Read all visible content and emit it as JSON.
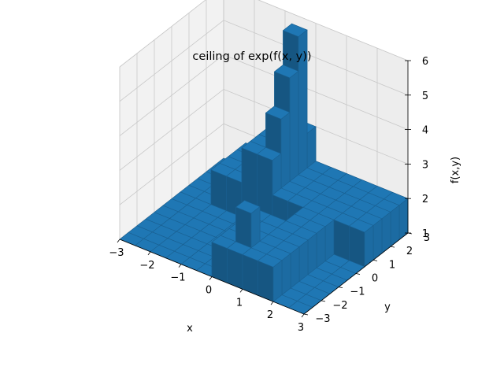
{
  "chart_data": {
    "type": "surface3d",
    "title": "ceiling of exp(f(x, y))",
    "xlabel": "x",
    "ylabel": "y",
    "zlabel": "f(x,y)",
    "x_ticks": [
      "−3",
      "−2",
      "−1",
      "0",
      "1",
      "2",
      "3"
    ],
    "y_ticks": [
      "−3",
      "−2",
      "−1",
      "0",
      "1",
      "2",
      "3"
    ],
    "z_ticks": [
      "1",
      "2",
      "3",
      "4",
      "5",
      "6"
    ],
    "xlim": [
      -3,
      3
    ],
    "ylim": [
      -3,
      3
    ],
    "zlim": [
      1,
      6
    ],
    "grid": true,
    "surface_color": "#1f77b4",
    "grid_x": [
      -3,
      -2.5,
      -2,
      -1.5,
      -1,
      -0.5,
      0,
      0.5,
      1,
      1.5,
      2,
      2.5,
      3
    ],
    "grid_y": [
      -3,
      -2.5,
      -2,
      -1.5,
      -1,
      -0.5,
      0,
      0.5,
      1,
      1.5,
      2,
      2.5,
      3
    ],
    "z": [
      [
        1,
        1,
        1,
        1,
        1,
        1,
        1,
        1,
        1,
        1,
        1,
        1,
        1
      ],
      [
        1,
        1,
        1,
        1,
        1,
        1,
        1,
        1,
        1,
        1,
        1,
        1,
        1
      ],
      [
        1,
        1,
        1,
        1,
        1,
        1,
        1,
        1,
        1,
        1,
        1,
        1,
        1
      ],
      [
        1,
        1,
        1,
        1,
        1,
        1,
        1,
        1,
        1,
        1,
        1,
        1,
        1
      ],
      [
        1,
        1,
        1,
        1,
        1,
        1,
        1,
        1,
        1,
        1,
        1,
        1,
        1
      ],
      [
        1,
        1,
        1,
        1,
        1,
        1,
        1,
        1,
        1,
        1,
        1,
        1,
        1
      ],
      [
        1,
        1,
        1,
        1,
        1,
        1,
        1,
        1,
        1,
        1,
        1,
        1,
        1
      ],
      [
        1,
        1,
        1,
        1,
        1,
        1,
        1,
        1,
        1,
        1,
        1,
        1,
        1
      ],
      [
        1,
        1,
        1,
        1,
        1,
        1,
        1,
        1,
        1,
        1,
        1,
        1,
        1
      ],
      [
        1,
        1,
        1,
        1,
        1,
        1,
        1,
        1,
        1,
        1,
        1,
        1,
        1
      ],
      [
        1,
        1,
        1,
        1,
        1,
        1,
        1,
        1,
        1,
        1,
        1,
        1,
        1
      ],
      [
        1,
        1,
        1,
        1,
        1,
        1,
        1,
        1,
        1,
        1,
        1,
        1,
        1
      ],
      [
        1,
        1,
        1,
        1,
        1,
        1,
        1,
        1,
        1,
        1,
        1,
        1,
        1
      ]
    ],
    "regions": [
      {
        "x": [
          -2,
          -1
        ],
        "y": [
          0.5,
          2.5
        ],
        "z": 2
      },
      {
        "x": [
          -1,
          0
        ],
        "y": [
          0.5,
          3
        ],
        "z": 3
      },
      {
        "x": [
          -0.5,
          0
        ],
        "y": [
          1,
          2.5
        ],
        "z": 4
      },
      {
        "x": [
          -0.5,
          0
        ],
        "y": [
          1.5,
          2
        ],
        "z": 5
      },
      {
        "x": [
          -0.5,
          0
        ],
        "y": [
          2,
          2.5
        ],
        "z": 6
      },
      {
        "x": [
          0,
          3
        ],
        "y": [
          0.5,
          3
        ],
        "z": 2
      },
      {
        "x": [
          0,
          1
        ],
        "y": [
          -3,
          -0.5
        ],
        "z": 2
      },
      {
        "x": [
          1,
          2
        ],
        "y": [
          -3,
          0.5
        ],
        "z": 2
      },
      {
        "x": [
          0.5,
          1
        ],
        "y": [
          -2.5,
          -2
        ],
        "z": 3
      }
    ]
  }
}
